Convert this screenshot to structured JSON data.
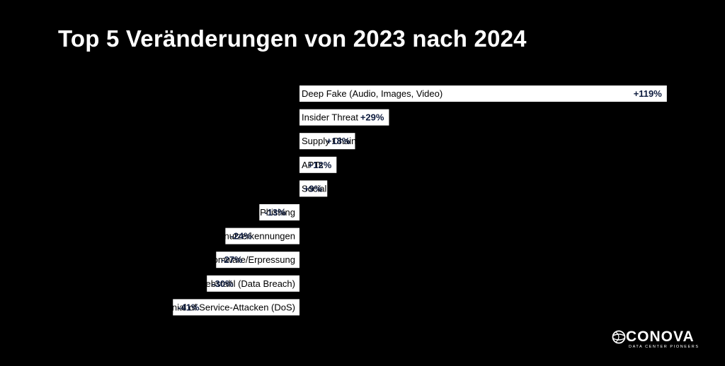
{
  "colors": {
    "background": "#000000",
    "bar": "#ffffff",
    "text": "#000000",
    "value_text": "#0d1b3e"
  },
  "chart_data": {
    "type": "bar",
    "orientation": "horizontal-diverging",
    "title": "Top 5 Veränderungen von 2023 nach 2024",
    "xlabel": "",
    "ylabel": "",
    "unit": "%",
    "grid": false,
    "xlim": [
      -41,
      119
    ],
    "categories": [
      "Deep Fake (Audio, Images, Video)",
      "Insider Threat",
      "Supply Chain-Angriff",
      "APTs",
      "Social Engineering",
      "(Spear) Phishing",
      "Diebstahl von Benutzerkennungen",
      "Ransomware/Erpressung",
      "Datendiebstahl (Data Breach)",
      "Denial of Service-Attacken (DoS)"
    ],
    "values": [
      119,
      29,
      18,
      12,
      9,
      -13,
      -24,
      -27,
      -30,
      -41
    ],
    "labels": [
      "+119%",
      "+29%",
      "+18%",
      "+12%",
      "+9%",
      "-13%",
      "-24%",
      "-27%",
      "-30%",
      "-41%"
    ]
  },
  "logo": {
    "wordmark": "CONOVA",
    "tagline": "DATA CENTER PIONEERS",
    "icon": "globe-swirl-icon"
  }
}
